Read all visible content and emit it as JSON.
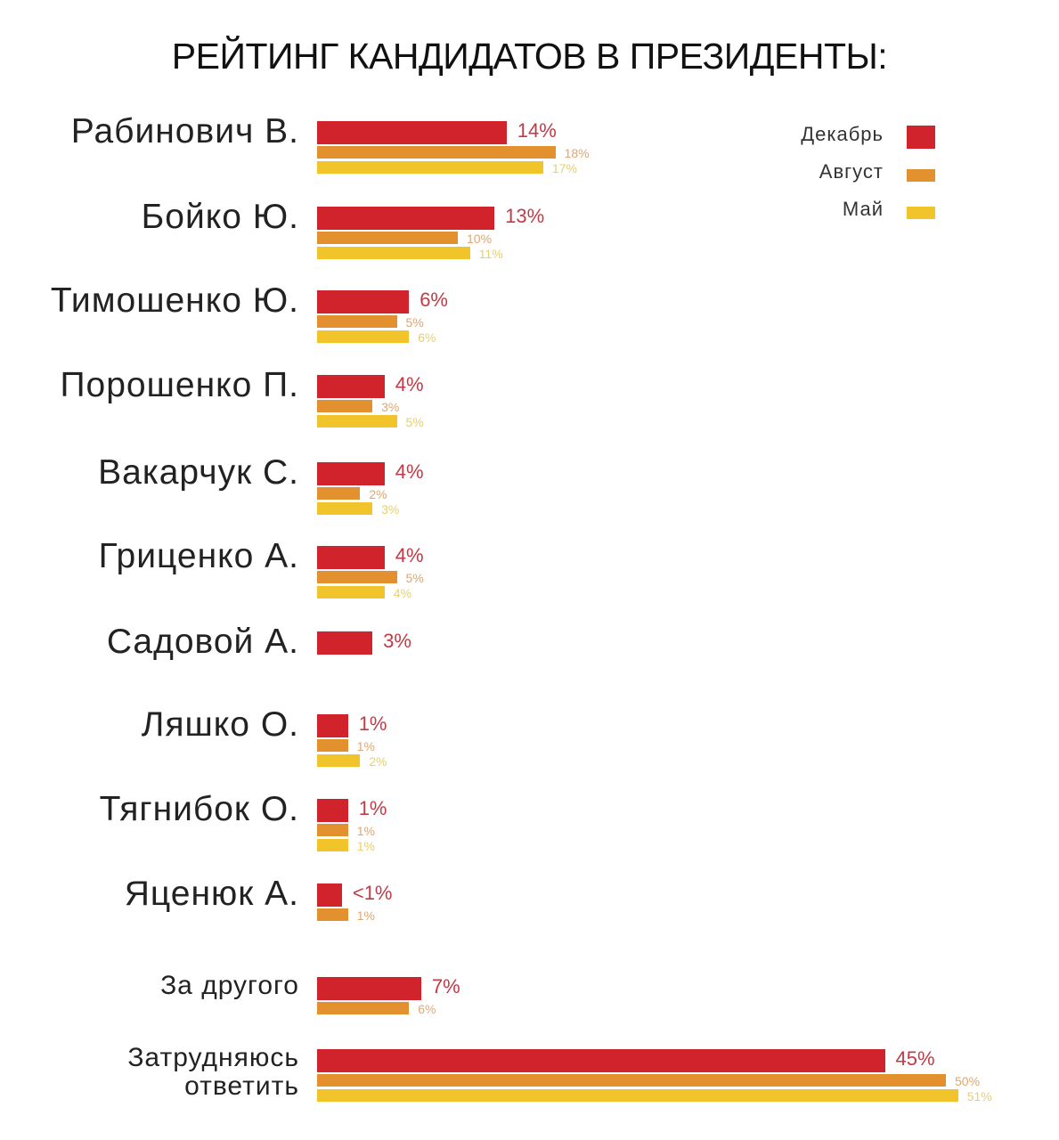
{
  "chart_data": {
    "type": "bar",
    "orientation": "horizontal",
    "title": "РЕЙТИНГ КАНДИДАТОВ В ПРЕЗИДЕНТЫ:",
    "legend_placement": "top-right",
    "grid": false,
    "series": [
      {
        "name": "Декабрь",
        "color": "#d0232b"
      },
      {
        "name": "Август",
        "color": "#e3912f"
      },
      {
        "name": "Май",
        "color": "#f2c42c"
      }
    ],
    "categories": [
      {
        "name": "Рабинович В.",
        "values": [
          14,
          18,
          17
        ],
        "labels": [
          "14%",
          "18%",
          "17%"
        ]
      },
      {
        "name": "Бойко Ю.",
        "values": [
          13,
          10,
          11
        ],
        "labels": [
          "13%",
          "10%",
          "11%"
        ]
      },
      {
        "name": "Тимошенко Ю.",
        "values": [
          6,
          5,
          6
        ],
        "labels": [
          "6%",
          "5%",
          "6%"
        ]
      },
      {
        "name": "Порошенко П.",
        "values": [
          4,
          3,
          5
        ],
        "labels": [
          "4%",
          "3%",
          "5%"
        ]
      },
      {
        "name": "Вакарчук С.",
        "values": [
          4,
          2,
          3
        ],
        "labels": [
          "4%",
          "2%",
          "3%"
        ]
      },
      {
        "name": "Гриценко А.",
        "values": [
          4,
          5,
          4
        ],
        "labels": [
          "4%",
          "5%",
          "4%"
        ]
      },
      {
        "name": "Садовой А.",
        "values": [
          3,
          null,
          null
        ],
        "labels": [
          "3%",
          null,
          null
        ]
      },
      {
        "name": "Ляшко О.",
        "values": [
          1,
          1,
          2
        ],
        "labels": [
          "1%",
          "1%",
          "2%"
        ]
      },
      {
        "name": "Тягнибок О.",
        "values": [
          1,
          1,
          1
        ],
        "labels": [
          "1%",
          "1%",
          "1%"
        ]
      },
      {
        "name": "Яценюк А.",
        "values": [
          0.5,
          1,
          null
        ],
        "labels": [
          "<1%",
          "1%",
          null
        ]
      },
      {
        "name": "За другого",
        "values": [
          7,
          6,
          null
        ],
        "labels": [
          "7%",
          "6%",
          null
        ]
      },
      {
        "name": "Затрудняюсь ответить",
        "values": [
          45,
          50,
          51
        ],
        "labels": [
          "45%",
          "50%",
          "51%"
        ]
      }
    ]
  }
}
